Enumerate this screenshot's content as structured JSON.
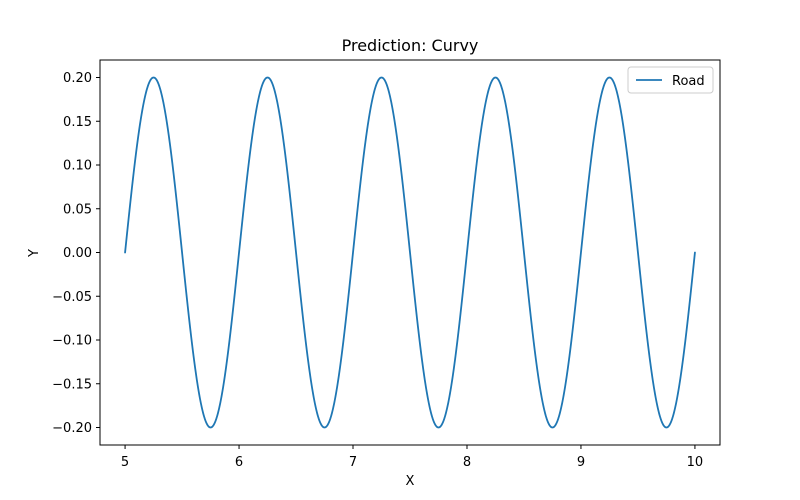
{
  "chart_data": {
    "type": "line",
    "title": "Prediction: Curvy",
    "xlabel": "X",
    "ylabel": "Y",
    "xlim": [
      4.78,
      10.22
    ],
    "ylim": [
      -0.22,
      0.22
    ],
    "xticks": [
      5,
      6,
      7,
      8,
      9,
      10
    ],
    "xtick_labels": [
      "5",
      "6",
      "7",
      "8",
      "9",
      "10"
    ],
    "yticks": [
      -0.2,
      -0.15,
      -0.1,
      -0.05,
      0.0,
      0.05,
      0.1,
      0.15,
      0.2
    ],
    "ytick_labels": [
      "−0.20",
      "−0.15",
      "−0.10",
      "−0.05",
      "0.00",
      "0.05",
      "0.10",
      "0.15",
      "0.20"
    ],
    "grid": false,
    "legend_position": "top-right",
    "series": [
      {
        "name": "Road",
        "color": "#1f77b4",
        "x_start": 5,
        "x_end": 10,
        "amplitude": 0.2,
        "period": 1,
        "function": "0.2 * sin(2 * pi * (x - 5))",
        "sampled_points": {
          "x": [
            5.0,
            5.25,
            5.5,
            5.75,
            6.0,
            6.25,
            6.5,
            6.75,
            7.0,
            7.25,
            7.5,
            7.75,
            8.0,
            8.25,
            8.5,
            8.75,
            9.0,
            9.25,
            9.5,
            9.75,
            10.0
          ],
          "y": [
            0.0,
            0.2,
            0.0,
            -0.2,
            0.0,
            0.2,
            0.0,
            -0.2,
            0.0,
            0.2,
            0.0,
            -0.2,
            0.0,
            0.2,
            0.0,
            -0.2,
            0.0,
            0.2,
            0.0,
            -0.2,
            0.0
          ]
        }
      }
    ]
  }
}
